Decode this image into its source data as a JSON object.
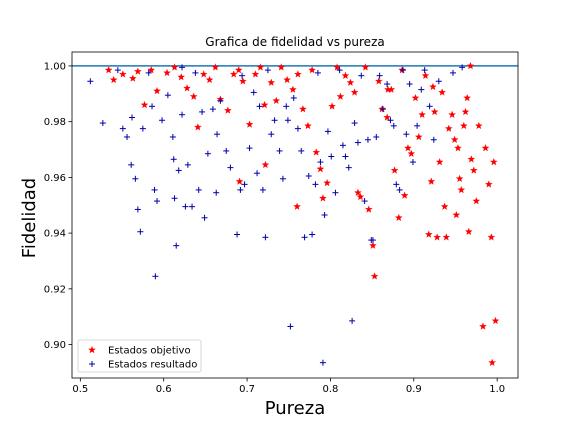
{
  "chart_data": {
    "type": "scatter",
    "title": "Grafica de fidelidad vs pureza",
    "xlabel": "Pureza",
    "ylabel": "Fidelidad",
    "xlim": [
      0.49,
      1.025
    ],
    "ylim": [
      0.888,
      1.005
    ],
    "xticks": [
      0.5,
      0.6,
      0.7,
      0.8,
      0.9,
      1.0
    ],
    "xtick_labels": [
      "0.5",
      "0.6",
      "0.7",
      "0.8",
      "0.9",
      "1.0"
    ],
    "yticks": [
      0.9,
      0.92,
      0.94,
      0.96,
      0.98,
      1.0
    ],
    "ytick_labels": [
      "0.90",
      "0.92",
      "0.94",
      "0.96",
      "0.98",
      "1.00"
    ],
    "grid": false,
    "legend_position": "lower-left",
    "reference_line": {
      "y": 1.0,
      "color": "#1f77b4"
    },
    "series": [
      {
        "name": "Estados objetivo",
        "marker": "star",
        "color": "#ff0000",
        "points": [
          [
            0.534,
            0.9985
          ],
          [
            0.54,
            0.995
          ],
          [
            0.551,
            0.997
          ],
          [
            0.563,
            0.9955
          ],
          [
            0.569,
            0.998
          ],
          [
            0.577,
            0.986
          ],
          [
            0.585,
            0.9985
          ],
          [
            0.592,
            0.991
          ],
          [
            0.604,
            0.9975
          ],
          [
            0.613,
            0.9995
          ],
          [
            0.621,
            0.996
          ],
          [
            0.628,
            0.992
          ],
          [
            0.636,
            0.989
          ],
          [
            0.641,
            0.978
          ],
          [
            0.648,
            0.997
          ],
          [
            0.655,
            0.995
          ],
          [
            0.662,
            0.9995
          ],
          [
            0.668,
            0.988
          ],
          [
            0.677,
            0.984
          ],
          [
            0.684,
            0.997
          ],
          [
            0.69,
            0.9985
          ],
          [
            0.695,
            0.9945
          ],
          [
            0.703,
            0.979
          ],
          [
            0.71,
            0.997
          ],
          [
            0.716,
            0.9995
          ],
          [
            0.721,
            0.986
          ],
          [
            0.729,
            0.994
          ],
          [
            0.735,
            0.9875
          ],
          [
            0.741,
            0.9995
          ],
          [
            0.748,
            0.995
          ],
          [
            0.755,
            0.9915
          ],
          [
            0.761,
            0.997
          ],
          [
            0.767,
            0.9845
          ],
          [
            0.773,
            0.9785
          ],
          [
            0.778,
            0.9985
          ],
          [
            0.783,
            0.969
          ],
          [
            0.788,
            0.963
          ],
          [
            0.791,
            0.9525
          ],
          [
            0.796,
            0.958
          ],
          [
            0.802,
            0.9855
          ],
          [
            0.808,
            0.9995
          ],
          [
            0.812,
            0.989
          ],
          [
            0.818,
            0.9965
          ],
          [
            0.824,
            0.994
          ],
          [
            0.829,
            0.9905
          ],
          [
            0.833,
            0.9545
          ],
          [
            0.836,
            0.953
          ],
          [
            0.842,
            0.9995
          ],
          [
            0.846,
            0.9485
          ],
          [
            0.851,
            0.9355
          ],
          [
            0.853,
            0.9245
          ],
          [
            0.858,
            0.9945
          ],
          [
            0.862,
            0.9845
          ],
          [
            0.868,
            0.9815
          ],
          [
            0.873,
            0.9915
          ],
          [
            0.877,
            0.9625
          ],
          [
            0.882,
            0.9455
          ],
          [
            0.886,
            0.9985
          ],
          [
            0.889,
            0.9535
          ],
          [
            0.893,
            0.9705
          ],
          [
            0.897,
            0.9685
          ],
          [
            0.902,
            0.9885
          ],
          [
            0.906,
            0.9745
          ],
          [
            0.91,
            0.9825
          ],
          [
            0.914,
            0.9965
          ],
          [
            0.918,
            0.9395
          ],
          [
            0.921,
            0.9585
          ],
          [
            0.925,
            0.9835
          ],
          [
            0.928,
            0.9385
          ],
          [
            0.931,
            0.9655
          ],
          [
            0.934,
            0.9905
          ],
          [
            0.937,
            0.9495
          ],
          [
            0.939,
            0.9385
          ],
          [
            0.942,
            0.9775
          ],
          [
            0.946,
            0.9825
          ],
          [
            0.949,
            0.9735
          ],
          [
            0.951,
            0.9465
          ],
          [
            0.953,
            0.9705
          ],
          [
            0.955,
            0.9595
          ],
          [
            0.957,
            0.9555
          ],
          [
            0.96,
            0.9785
          ],
          [
            0.962,
            0.9835
          ],
          [
            0.964,
            0.9885
          ],
          [
            0.966,
            0.9405
          ],
          [
            0.969,
            0.9665
          ],
          [
            0.972,
            0.9625
          ],
          [
            0.975,
            0.9515
          ],
          [
            0.978,
            0.9785
          ],
          [
            0.983,
            0.9065
          ],
          [
            0.986,
            0.9705
          ],
          [
            0.99,
            0.9575
          ],
          [
            0.993,
            0.9385
          ],
          [
            0.994,
            0.8935
          ],
          [
            0.996,
            0.9655
          ],
          [
            0.998,
            0.9085
          ],
          [
            0.968,
            1.0
          ],
          [
            0.722,
            0.9645
          ],
          [
            0.691,
            0.9585
          ],
          [
            0.76,
            0.9495
          ],
          [
            0.869,
            0.9915
          ],
          [
            0.923,
            0.9925
          ]
        ]
      },
      {
        "name": "Estados resultado",
        "marker": "plus",
        "color": "#0000aa",
        "points": [
          [
            0.512,
            0.9945
          ],
          [
            0.527,
            0.9795
          ],
          [
            0.545,
            0.9985
          ],
          [
            0.551,
            0.9775
          ],
          [
            0.556,
            0.9745
          ],
          [
            0.561,
            0.9645
          ],
          [
            0.562,
            0.9815
          ],
          [
            0.566,
            0.9595
          ],
          [
            0.569,
            0.9485
          ],
          [
            0.572,
            0.9405
          ],
          [
            0.575,
            0.9775
          ],
          [
            0.582,
            0.9975
          ],
          [
            0.586,
            0.9855
          ],
          [
            0.589,
            0.9555
          ],
          [
            0.59,
            0.9245
          ],
          [
            0.592,
            0.9515
          ],
          [
            0.598,
            0.9805
          ],
          [
            0.605,
            0.9895
          ],
          [
            0.611,
            0.9745
          ],
          [
            0.612,
            0.9665
          ],
          [
            0.613,
            0.9525
          ],
          [
            0.615,
            0.9355
          ],
          [
            0.618,
            0.9625
          ],
          [
            0.622,
            0.9825
          ],
          [
            0.626,
            0.9495
          ],
          [
            0.629,
            0.9645
          ],
          [
            0.634,
            0.9495
          ],
          [
            0.638,
            0.9975
          ],
          [
            0.642,
            0.9555
          ],
          [
            0.646,
            0.9835
          ],
          [
            0.649,
            0.9455
          ],
          [
            0.653,
            0.9685
          ],
          [
            0.659,
            0.9845
          ],
          [
            0.663,
            0.9545
          ],
          [
            0.664,
            0.9755
          ],
          [
            0.668,
            0.9875
          ],
          [
            0.675,
            0.9695
          ],
          [
            0.68,
            0.9635
          ],
          [
            0.688,
            0.9395
          ],
          [
            0.692,
            0.9555
          ],
          [
            0.697,
            0.9575
          ],
          [
            0.703,
            0.9705
          ],
          [
            0.708,
            0.9905
          ],
          [
            0.712,
            0.9615
          ],
          [
            0.715,
            0.9855
          ],
          [
            0.719,
            0.9555
          ],
          [
            0.722,
            0.9385
          ],
          [
            0.725,
            0.9985
          ],
          [
            0.729,
            0.9755
          ],
          [
            0.733,
            0.9805
          ],
          [
            0.739,
            0.9695
          ],
          [
            0.743,
            0.9595
          ],
          [
            0.747,
            0.9855
          ],
          [
            0.752,
            0.9065
          ],
          [
            0.756,
            0.9885
          ],
          [
            0.761,
            0.9775
          ],
          [
            0.765,
            0.9695
          ],
          [
            0.769,
            0.9385
          ],
          [
            0.774,
            0.9605
          ],
          [
            0.778,
            0.9395
          ],
          [
            0.782,
            0.9575
          ],
          [
            0.785,
            0.9975
          ],
          [
            0.788,
            0.9655
          ],
          [
            0.791,
            0.8935
          ],
          [
            0.793,
            0.9465
          ],
          [
            0.797,
            0.9765
          ],
          [
            0.801,
            0.9675
          ],
          [
            0.806,
            0.9545
          ],
          [
            0.811,
            0.9985
          ],
          [
            0.815,
            0.9715
          ],
          [
            0.818,
            0.9675
          ],
          [
            0.822,
            0.9635
          ],
          [
            0.826,
            0.9085
          ],
          [
            0.829,
            0.9795
          ],
          [
            0.833,
            0.9725
          ],
          [
            0.837,
            0.9965
          ],
          [
            0.841,
            0.9515
          ],
          [
            0.845,
            0.9735
          ],
          [
            0.849,
            0.9375
          ],
          [
            0.851,
            0.9375
          ],
          [
            0.855,
            0.9745
          ],
          [
            0.859,
            0.9965
          ],
          [
            0.863,
            0.9845
          ],
          [
            0.868,
            0.9935
          ],
          [
            0.872,
            0.9805
          ],
          [
            0.876,
            0.9785
          ],
          [
            0.879,
            0.9575
          ],
          [
            0.883,
            0.9555
          ],
          [
            0.887,
            0.9985
          ],
          [
            0.891,
            0.9755
          ],
          [
            0.895,
            0.9935
          ],
          [
            0.899,
            0.9655
          ],
          [
            0.904,
            0.9785
          ],
          [
            0.909,
            0.9915
          ],
          [
            0.913,
            0.9985
          ],
          [
            0.919,
            0.9855
          ],
          [
            0.924,
            0.9735
          ],
          [
            0.93,
            0.9945
          ],
          [
            0.947,
            0.9975
          ],
          [
            0.958,
            0.9995
          ],
          [
            0.622,
            0.9995
          ],
          [
            0.694,
            0.9965
          ],
          [
            0.749,
            0.9805
          ]
        ]
      }
    ]
  }
}
